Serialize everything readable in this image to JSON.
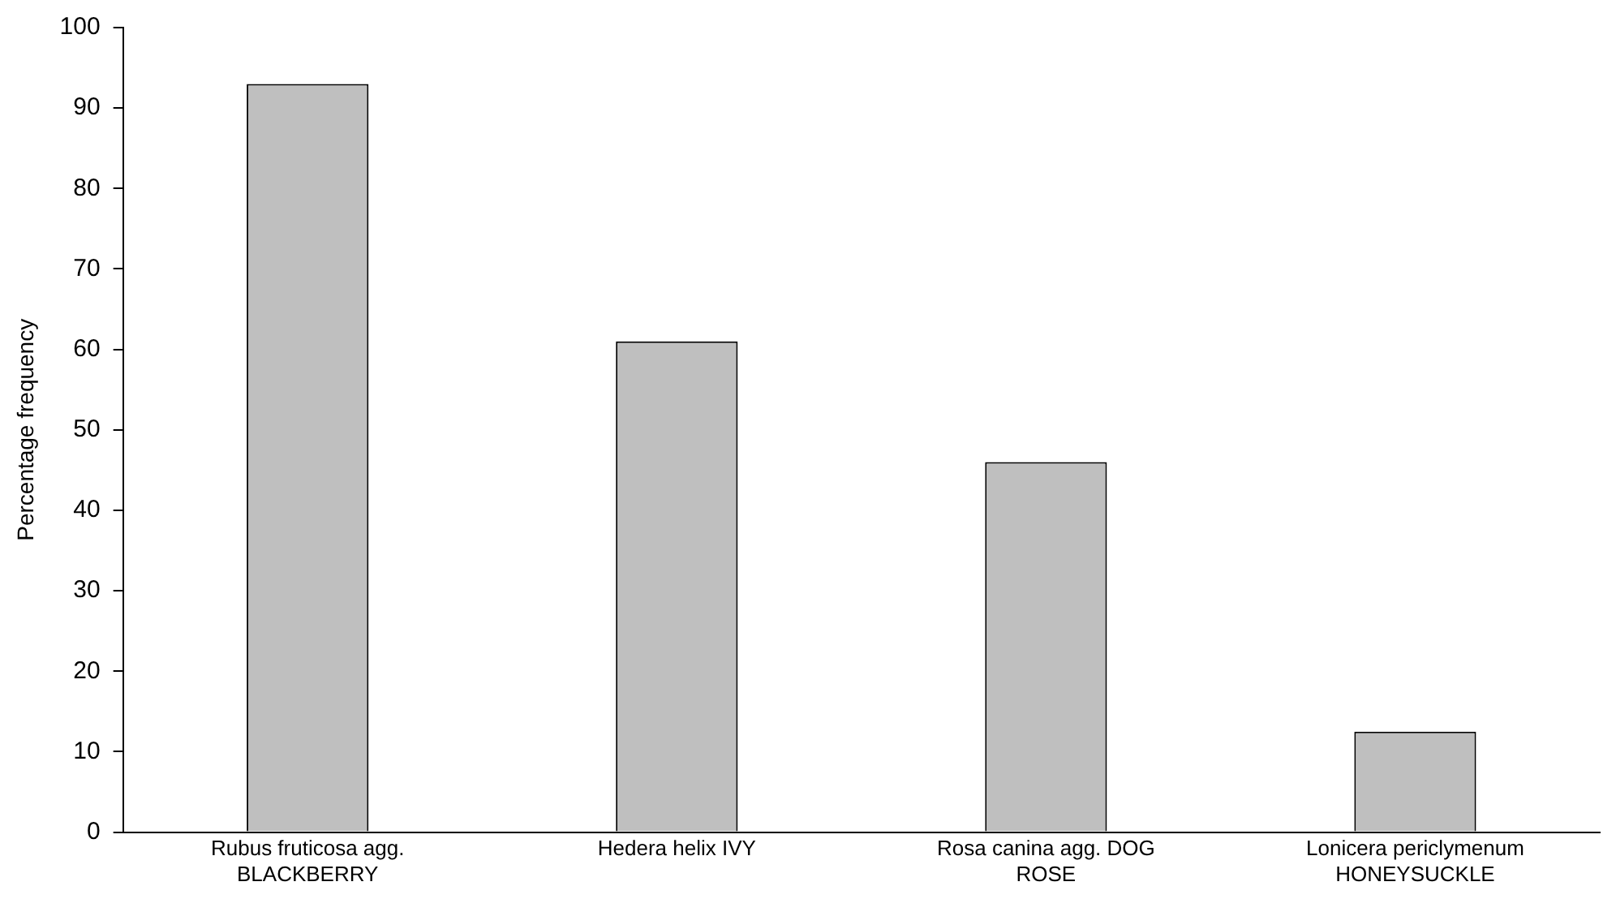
{
  "chart_data": {
    "type": "bar",
    "ylabel": "Percentage frequency",
    "categories": [
      "Rubus fruticosa agg. BLACKBERRY",
      "Hedera helix IVY",
      "Rosa canina agg. DOG ROSE",
      "Lonicera periclymenum HONEYSUCKLE"
    ],
    "values": [
      93,
      61,
      46,
      12.5
    ],
    "color": "#bfbfbf",
    "ylim": [
      0,
      100
    ],
    "yticks": [
      0,
      10,
      20,
      30,
      40,
      50,
      60,
      70,
      80,
      90,
      100
    ],
    "grid": false,
    "legend": false
  }
}
